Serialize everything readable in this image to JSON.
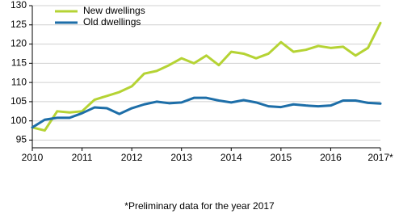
{
  "chart_data": {
    "type": "line",
    "x": [
      2010,
      2010.25,
      2010.5,
      2010.75,
      2011,
      2011.25,
      2011.5,
      2011.75,
      2012,
      2012.25,
      2012.5,
      2012.75,
      2013,
      2013.25,
      2013.5,
      2013.75,
      2014,
      2014.25,
      2014.5,
      2014.75,
      2015,
      2015.25,
      2015.5,
      2015.75,
      2016,
      2016.25,
      2016.5,
      2016.75,
      2017
    ],
    "series": [
      {
        "name": "New dwellings",
        "color": "#b5d334",
        "values": [
          98.3,
          97.5,
          102.5,
          102.2,
          102.5,
          105.5,
          106.5,
          107.5,
          109.0,
          112.3,
          113.0,
          114.5,
          116.3,
          115.0,
          117.0,
          114.5,
          118.0,
          117.5,
          116.3,
          117.5,
          120.5,
          118.0,
          118.5,
          119.5,
          119.0,
          119.3,
          117.0,
          119.0,
          125.5
        ]
      },
      {
        "name": "Old dwellings",
        "color": "#1d6ea8",
        "values": [
          98.3,
          100.3,
          100.8,
          100.8,
          102.0,
          103.5,
          103.3,
          101.8,
          103.3,
          104.3,
          105.0,
          104.6,
          104.8,
          106.0,
          106.0,
          105.3,
          104.8,
          105.4,
          104.8,
          103.8,
          103.6,
          104.3,
          104.0,
          103.8,
          104.0,
          105.3,
          105.3,
          104.7,
          104.5
        ]
      }
    ],
    "xlim": [
      2010,
      2017
    ],
    "xticks": [
      2010,
      2011,
      2012,
      2013,
      2014,
      2015,
      2016,
      {
        "value": 2017,
        "label": "2017*"
      }
    ],
    "ylim": [
      93,
      130
    ],
    "yticks": [
      95,
      100,
      105,
      110,
      115,
      120,
      125,
      130
    ],
    "grid": true,
    "legend": "upper-left",
    "footnote": "*Preliminary data for the year 2017"
  }
}
